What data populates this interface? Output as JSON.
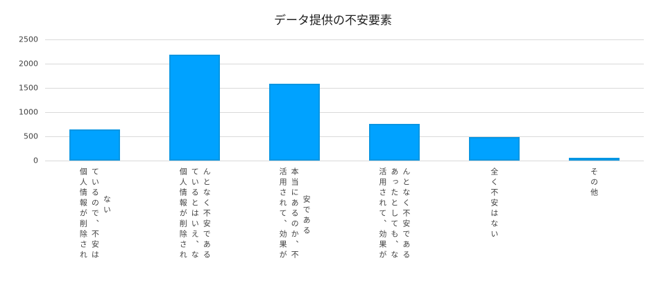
{
  "chart_data": {
    "type": "bar",
    "title": "データ提供の不安要素",
    "xlabel": "",
    "ylabel": "",
    "ylim": [
      0,
      2500
    ],
    "yticks": [
      0,
      500,
      1000,
      1500,
      2000,
      2500
    ],
    "grid": true,
    "legend": null,
    "bar_color": "#00a2ff",
    "bar_border_color": "#0896e3",
    "categories": [
      "個人情報が削除されているので、不安はない",
      "個人情報が削除されているとはいえ、なんとなく不安である",
      "活用されて、効果が本当にあるのか、不安である",
      "活用されて、効果があったとしても、なんとなく不安である",
      "全く不安はない",
      "その他"
    ],
    "category_label_columns": [
      [
        "個人情報が削除され",
        "ているので、不安は",
        "ない"
      ],
      [
        "個人情報が削除され",
        "ているとはいえ、な",
        "んとなく不安である"
      ],
      [
        "活用されて、効果が",
        "本当にあるのか、不",
        "安である"
      ],
      [
        "活用されて、効果が",
        "あったとしても、な",
        "んとなく不安である"
      ],
      [
        "全く不安はない"
      ],
      [
        "その他"
      ]
    ],
    "values": [
      645,
      2185,
      1590,
      760,
      490,
      60
    ]
  }
}
